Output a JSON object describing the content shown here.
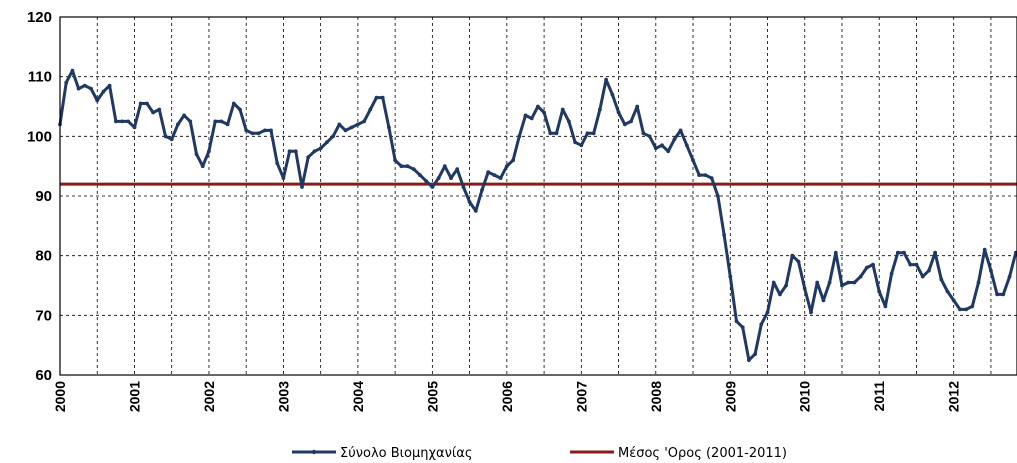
{
  "chart_data": {
    "type": "line",
    "title": "",
    "xlabel": "",
    "ylabel": "",
    "ylim": [
      60,
      120
    ],
    "yticks": [
      "60",
      "70",
      "80",
      "90",
      "100",
      "110",
      "120"
    ],
    "xlim": [
      2000,
      2012.85
    ],
    "xticks": [
      "2000",
      "2001",
      "2002",
      "2003",
      "2004",
      "2005",
      "2006",
      "2007",
      "2008",
      "2009",
      "2010",
      "2011",
      "2012"
    ],
    "grid": true,
    "legend_position": "bottom",
    "series": [
      {
        "name": "Σύνολο Βιομηχανίας",
        "color": "#1f3864",
        "x_start": 2000,
        "x_step_months": 1,
        "values": [
          102,
          109,
          111,
          108,
          108.5,
          108,
          106,
          107.5,
          108.5,
          102.5,
          102.5,
          102.5,
          101.5,
          105.5,
          105.5,
          104,
          104.5,
          100,
          99.5,
          102,
          103.5,
          102.5,
          97,
          95,
          97.5,
          102.5,
          102.5,
          102,
          105.5,
          104.5,
          101,
          100.5,
          100.5,
          101,
          101,
          95.5,
          93,
          97.5,
          97.5,
          91.5,
          96.5,
          97.5,
          98,
          99,
          100,
          102,
          101,
          101.5,
          102,
          102.5,
          104.5,
          106.5,
          106.5,
          101.5,
          96,
          95,
          95,
          94.5,
          93.5,
          92.5,
          91.5,
          93,
          95,
          93,
          94.5,
          91.5,
          89,
          87.5,
          91,
          94,
          93.5,
          93,
          95,
          96,
          100,
          103.5,
          103,
          105,
          104,
          100.5,
          100.5,
          104.5,
          102.5,
          99,
          98.5,
          100.5,
          100.5,
          104.5,
          109.5,
          107,
          104,
          102,
          102.5,
          105,
          100.5,
          100,
          98,
          98.5,
          97.5,
          99.5,
          101,
          98.5,
          96,
          93.5,
          93.5,
          93,
          90,
          83.5,
          76.5,
          69,
          68,
          62.5,
          63.5,
          68.5,
          70.5,
          75.5,
          73.5,
          75,
          80,
          79,
          74.5,
          70.5,
          75.5,
          72.5,
          75.5,
          80.5,
          75,
          75.5,
          75.5,
          76.5,
          78,
          78.5,
          74,
          71.5,
          77,
          80.5,
          80.5,
          78.5,
          78.5,
          76.5,
          77.5,
          80.5,
          76,
          74,
          72.5,
          71,
          71,
          71.5,
          75.5,
          81,
          77.5,
          73.5,
          73.5,
          76.5,
          80.5,
          80.5,
          80
        ]
      },
      {
        "name": "Μέσος 'Ορος (2001-2011)",
        "color": "#8b1a1a",
        "constant": 92
      }
    ]
  }
}
